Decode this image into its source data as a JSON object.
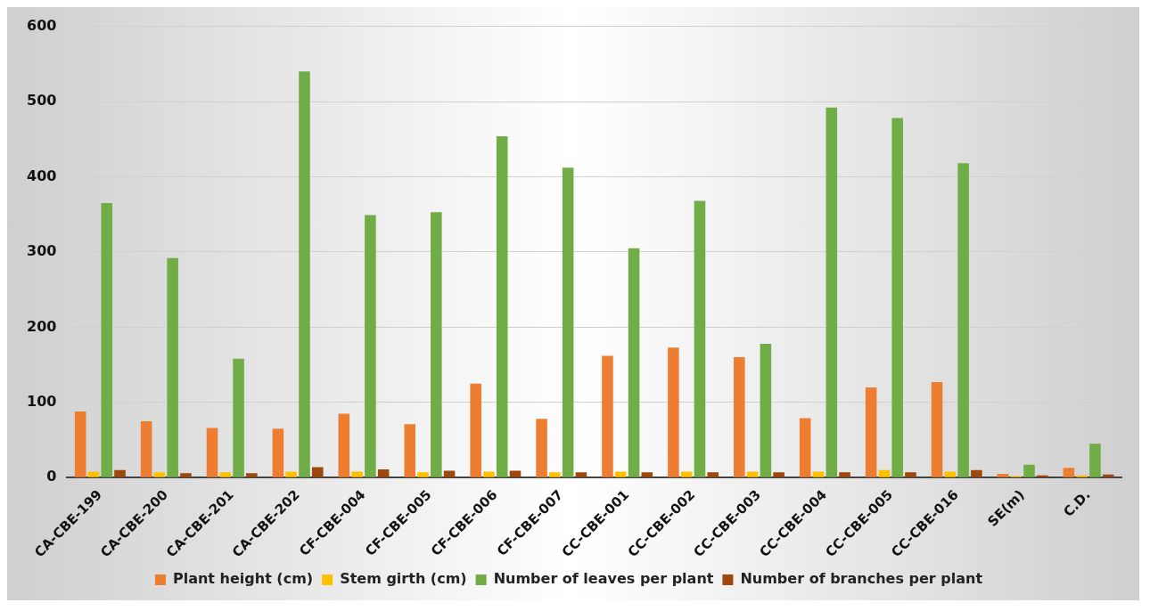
{
  "chart_data": {
    "type": "bar",
    "categories": [
      "CA-CBE-199",
      "CA-CBE-200",
      "CA-CBE-201",
      "CA-CBE-202",
      "CF-CBE-004",
      "CF-CBE-005",
      "CF-CBE-006",
      "CF-CBE-007",
      "CC-CBE-001",
      "CC-CBE-002",
      "CC-CBE-003",
      "CC-CBE-004",
      "CC-CBE-005",
      "CC-CBE-016",
      "SE(m)",
      "C.D."
    ],
    "series": [
      {
        "name": "Plant height (cm)",
        "color": "#ed7d31",
        "values": [
          88,
          75,
          66,
          65,
          85,
          71,
          125,
          78,
          162,
          173,
          160,
          79,
          120,
          127,
          5,
          13
        ]
      },
      {
        "name": "Stem girth (cm)",
        "color": "#ffc000",
        "values": [
          8,
          7,
          7,
          8,
          8,
          7,
          8,
          7,
          8,
          8,
          8,
          8,
          10,
          8,
          2,
          3
        ]
      },
      {
        "name": "Number of leaves per plant",
        "color": "#70ad47",
        "values": [
          365,
          292,
          158,
          540,
          349,
          353,
          454,
          412,
          305,
          368,
          178,
          492,
          478,
          418,
          17,
          45
        ]
      },
      {
        "name": "Number of branches per plant",
        "color": "#9e480e",
        "values": [
          10,
          6,
          6,
          14,
          11,
          9,
          9,
          7,
          7,
          7,
          7,
          7,
          7,
          10,
          3,
          4
        ]
      }
    ],
    "ylim": [
      0,
      600
    ],
    "yticks": [
      0,
      100,
      200,
      300,
      400,
      500,
      600
    ],
    "grid": "y",
    "legend": "bottom"
  }
}
